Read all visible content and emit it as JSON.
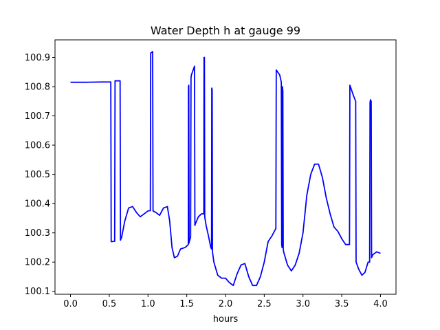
{
  "chart_data": {
    "type": "line",
    "title": "Water Depth h at gauge 99",
    "xlabel": "hours",
    "ylabel": "",
    "xlim": [
      -0.2,
      4.2
    ],
    "ylim": [
      100.09,
      100.96
    ],
    "xticks": [
      0.0,
      0.5,
      1.0,
      1.5,
      2.0,
      2.5,
      3.0,
      3.5,
      4.0
    ],
    "xtick_labels": [
      "0.0",
      "0.5",
      "1.0",
      "1.5",
      "2.0",
      "2.5",
      "3.0",
      "3.5",
      "4.0"
    ],
    "yticks": [
      100.1,
      100.2,
      100.3,
      100.4,
      100.5,
      100.6,
      100.7,
      100.8,
      100.9
    ],
    "ytick_labels": [
      "100.1",
      "100.2",
      "100.3",
      "100.4",
      "100.5",
      "100.6",
      "100.7",
      "100.8",
      "100.9"
    ],
    "grid": false,
    "series": [
      {
        "color": "#0000ff",
        "x": [
          0.0,
          0.2,
          0.4,
          0.52,
          0.525,
          0.53,
          0.57,
          0.575,
          0.64,
          0.645,
          0.66,
          0.7,
          0.75,
          0.8,
          0.85,
          0.9,
          0.95,
          1.0,
          1.03,
          1.035,
          1.06,
          1.065,
          1.1,
          1.15,
          1.2,
          1.25,
          1.28,
          1.31,
          1.34,
          1.38,
          1.42,
          1.48,
          1.52,
          1.522,
          1.526,
          1.53,
          1.532,
          1.55,
          1.555,
          1.56,
          1.6,
          1.605,
          1.61,
          1.65,
          1.69,
          1.72,
          1.723,
          1.728,
          1.732,
          1.75,
          1.78,
          1.81,
          1.82,
          1.823,
          1.828,
          1.832,
          1.85,
          1.9,
          1.95,
          2.0,
          2.05,
          2.1,
          2.15,
          2.2,
          2.25,
          2.3,
          2.35,
          2.4,
          2.45,
          2.5,
          2.55,
          2.6,
          2.65,
          2.655,
          2.7,
          2.72,
          2.725,
          2.73,
          2.735,
          2.74,
          2.745,
          2.75,
          2.8,
          2.85,
          2.9,
          2.95,
          3.0,
          3.05,
          3.1,
          3.15,
          3.2,
          3.25,
          3.3,
          3.35,
          3.4,
          3.45,
          3.5,
          3.55,
          3.6,
          3.605,
          3.65,
          3.68,
          3.685,
          3.72,
          3.76,
          3.8,
          3.84,
          3.86,
          3.865,
          3.87,
          3.88,
          3.885,
          3.9,
          3.95,
          4.0
        ],
        "y": [
          100.815,
          100.815,
          100.816,
          100.816,
          100.27,
          100.27,
          100.271,
          100.82,
          100.82,
          100.275,
          100.285,
          100.34,
          100.385,
          100.39,
          100.37,
          100.355,
          100.365,
          100.375,
          100.376,
          100.915,
          100.92,
          100.375,
          100.37,
          100.36,
          100.385,
          100.39,
          100.34,
          100.25,
          100.215,
          100.22,
          100.245,
          100.25,
          100.26,
          100.8,
          100.805,
          100.265,
          100.27,
          100.285,
          100.83,
          100.84,
          100.87,
          100.325,
          100.33,
          100.355,
          100.365,
          100.365,
          100.9,
          100.9,
          100.355,
          100.325,
          100.29,
          100.25,
          100.245,
          100.795,
          100.79,
          100.235,
          100.2,
          100.155,
          100.145,
          100.145,
          100.13,
          100.12,
          100.16,
          100.19,
          100.195,
          100.15,
          100.12,
          100.12,
          100.15,
          100.2,
          100.27,
          100.29,
          100.315,
          100.857,
          100.84,
          100.815,
          100.26,
          100.25,
          100.8,
          100.785,
          100.245,
          100.235,
          100.19,
          100.17,
          100.19,
          100.23,
          100.3,
          100.43,
          100.5,
          100.535,
          100.535,
          100.49,
          100.42,
          100.365,
          100.32,
          100.305,
          100.28,
          100.26,
          100.26,
          100.805,
          100.77,
          100.75,
          100.2,
          100.175,
          100.155,
          100.165,
          100.2,
          100.2,
          100.745,
          100.755,
          100.75,
          100.215,
          100.225,
          100.235,
          100.23
        ]
      }
    ]
  }
}
